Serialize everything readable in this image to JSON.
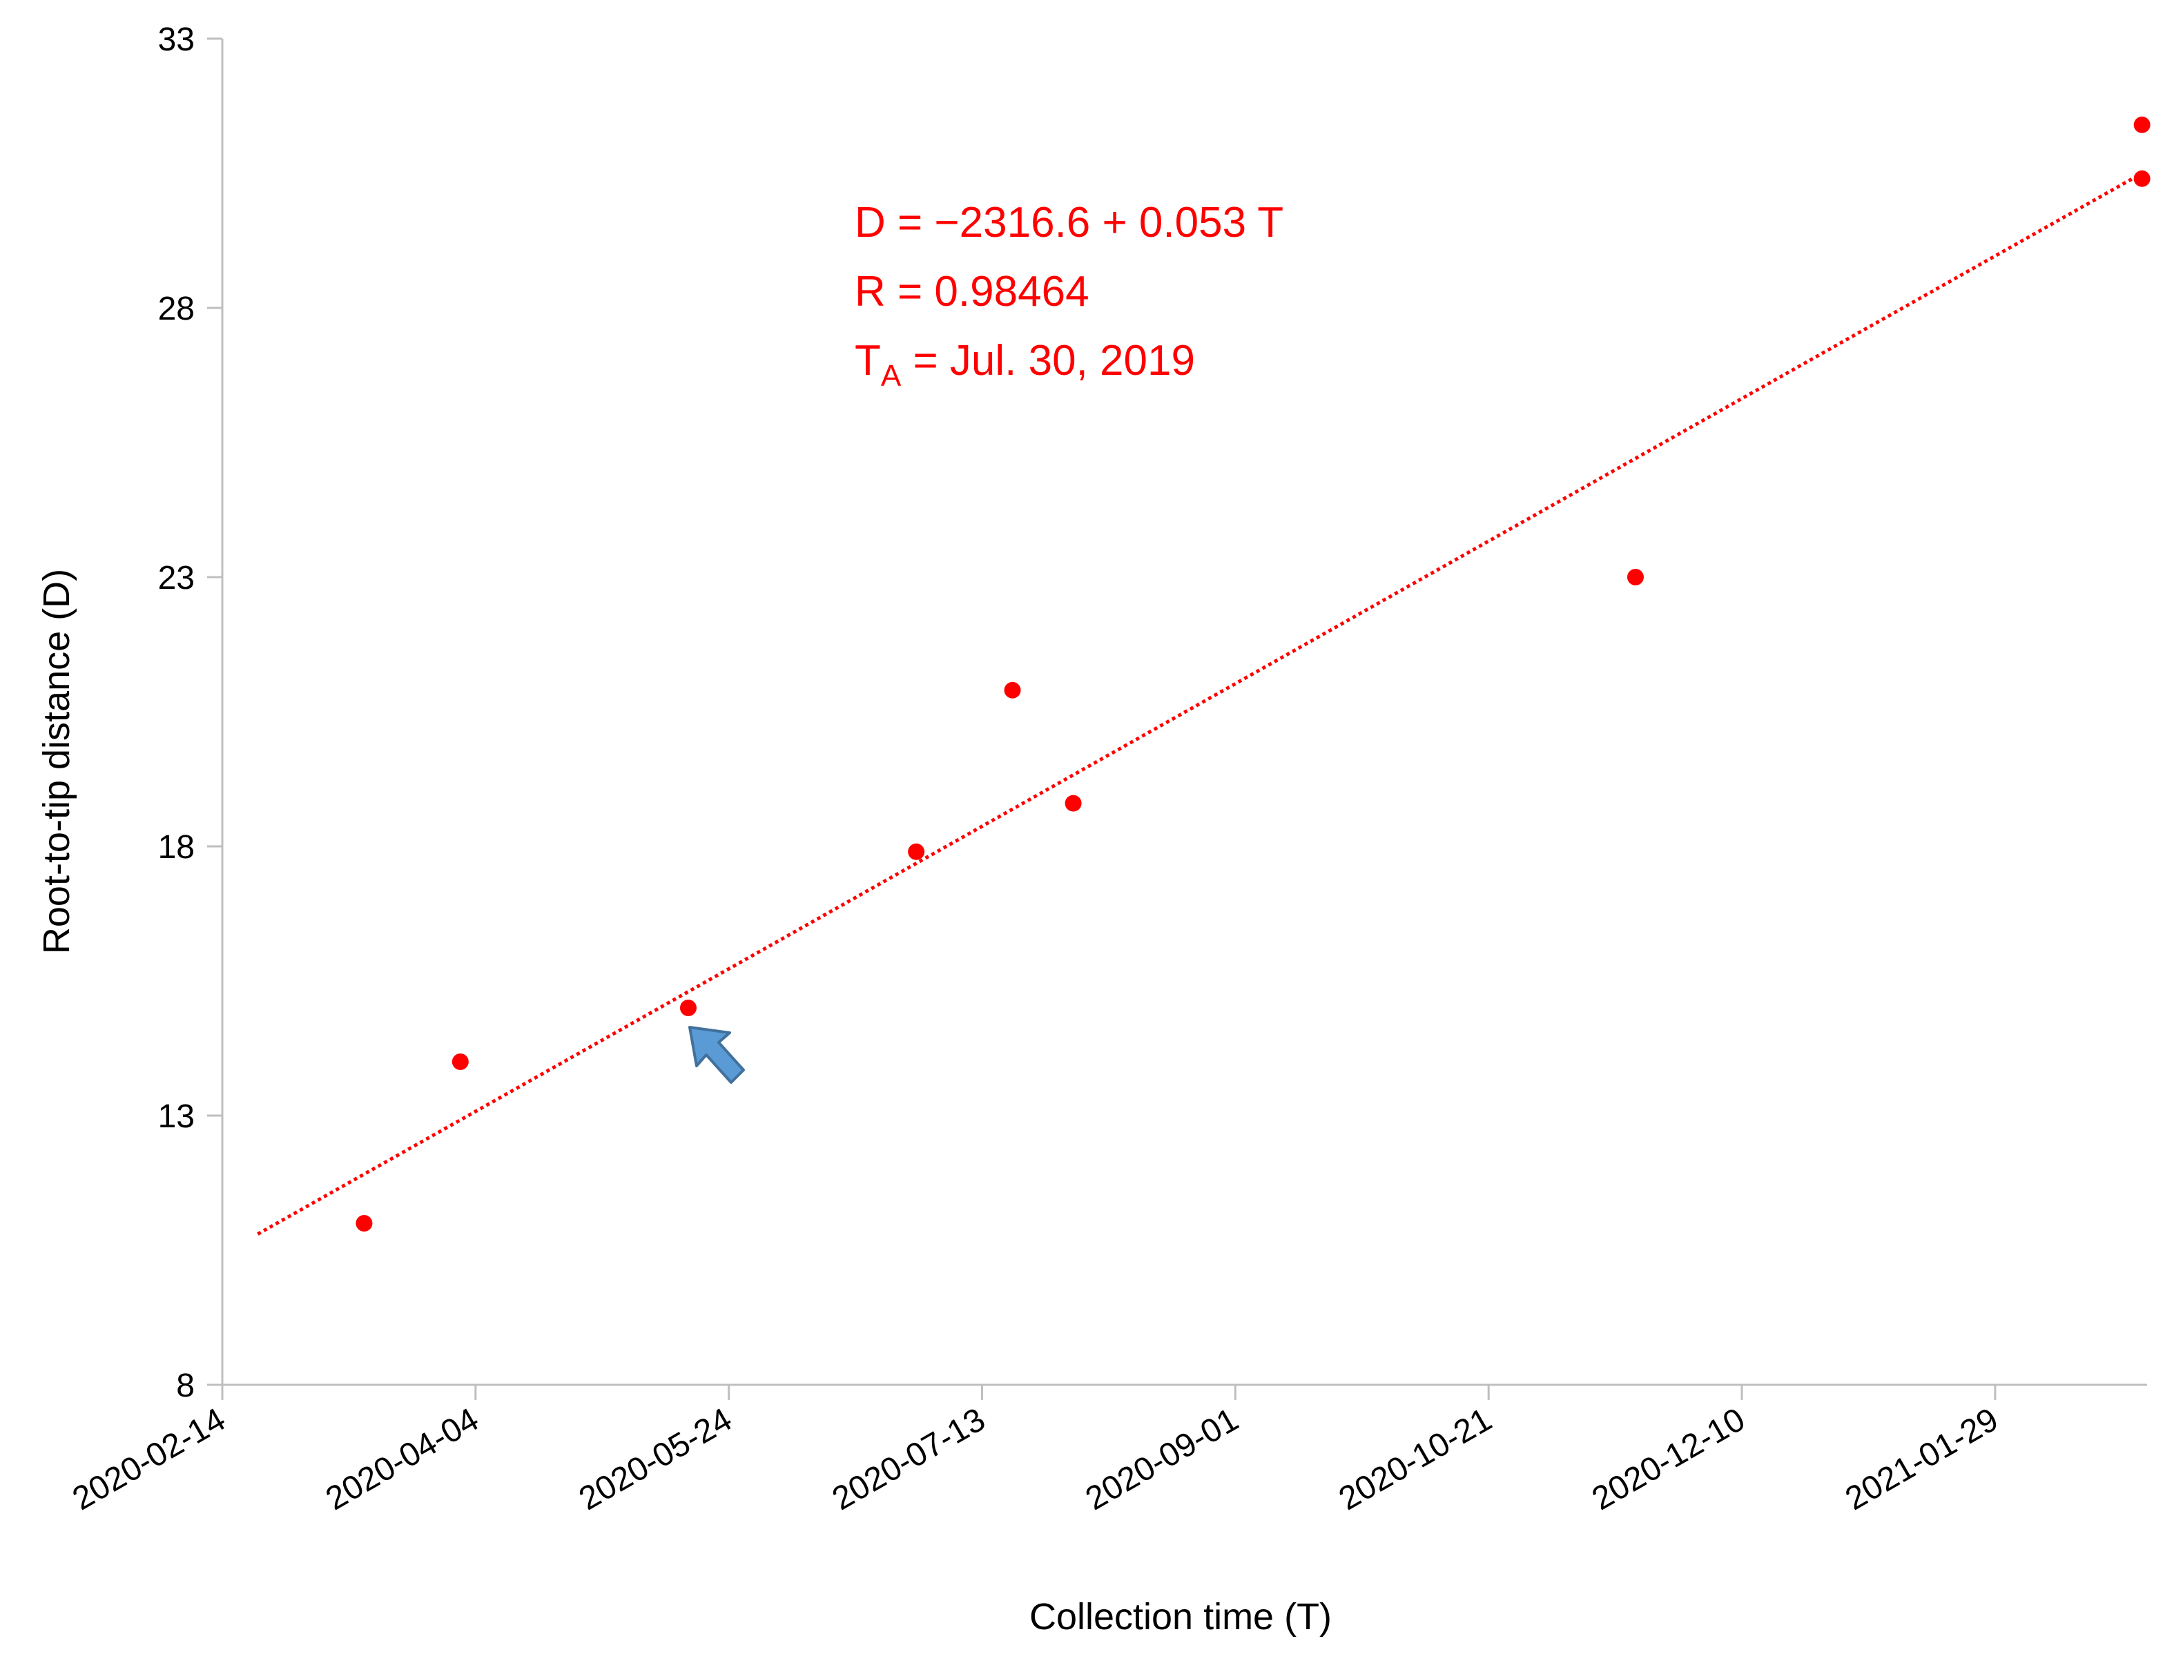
{
  "chart_data": {
    "type": "scatter",
    "xlabel": "Collection time (T)",
    "ylabel": "Root-to-tip distance (D)",
    "xlim": [
      "2020-02-14",
      "2021-02-28"
    ],
    "ylim": [
      8,
      33
    ],
    "x_ticks": [
      "2020-02-14",
      "2020-04-04",
      "2020-05-24",
      "2020-07-13",
      "2020-09-01",
      "2020-10-21",
      "2020-12-10",
      "2021-01-29"
    ],
    "y_ticks": [
      8,
      13,
      18,
      23,
      28,
      33
    ],
    "grid": false,
    "legend": false,
    "series": [
      {
        "points": [
          {
            "x": "2020-03-13",
            "y": 11.0
          },
          {
            "x": "2020-04-01",
            "y": 14.0
          },
          {
            "x": "2020-05-16",
            "y": 15.0
          },
          {
            "x": "2020-06-30",
            "y": 17.9
          },
          {
            "x": "2020-07-19",
            "y": 20.9
          },
          {
            "x": "2020-07-31",
            "y": 18.8
          },
          {
            "x": "2020-11-19",
            "y": 23.0
          },
          {
            "x": "2021-02-27",
            "y": 30.4
          },
          {
            "x": "2021-02-27",
            "y": 31.4
          }
        ],
        "color": "#ff0000"
      }
    ],
    "trendline": {
      "style": "dotted",
      "color": "#ff0000",
      "from": {
        "x": "2020-02-21",
        "y": 10.8
      },
      "to": {
        "x": "2021-02-27",
        "y": 30.5
      }
    },
    "annotations": {
      "line1": "D = −2316.6 + 0.053 T",
      "line2": "R = 0.98464",
      "line3_main": "T",
      "line3_sub": "A",
      "line3_rest": " = Jul. 30, 2019",
      "color": "#ff0000"
    },
    "marker_arrow": {
      "target": {
        "x": "2020-05-16",
        "y": 15.0
      },
      "color": "#5b9bd5",
      "outline": "#41719c"
    }
  }
}
